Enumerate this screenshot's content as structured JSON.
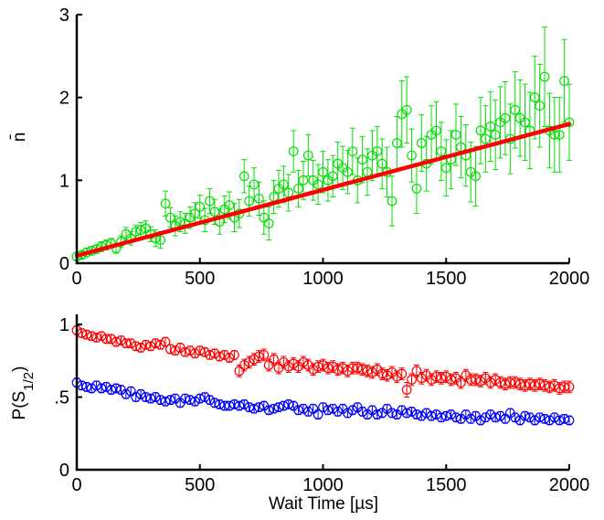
{
  "colors": {
    "nbar": "#00e000",
    "fit": "#ff0000",
    "red": "#ff0000",
    "blue": "#0000ff"
  },
  "chart_data": [
    {
      "type": "scatter",
      "ylabel": "n̄",
      "xlim": [
        0,
        2000
      ],
      "ylim": [
        0,
        3
      ],
      "xticks": [
        "0",
        "500",
        "1000",
        "1500",
        "2000"
      ],
      "yticks": [
        "0",
        "1",
        "2",
        "3"
      ],
      "series": [
        {
          "color": "#00e000",
          "marker": "circle",
          "x": [
            0,
            20,
            40,
            60,
            80,
            100,
            120,
            140,
            160,
            180,
            200,
            220,
            240,
            260,
            280,
            300,
            320,
            340,
            360,
            380,
            400,
            420,
            440,
            460,
            480,
            500,
            520,
            540,
            560,
            580,
            600,
            620,
            640,
            660,
            680,
            700,
            720,
            740,
            760,
            780,
            800,
            820,
            840,
            860,
            880,
            900,
            920,
            940,
            960,
            980,
            1000,
            1020,
            1040,
            1060,
            1080,
            1100,
            1120,
            1140,
            1160,
            1180,
            1200,
            1220,
            1240,
            1260,
            1280,
            1300,
            1320,
            1340,
            1360,
            1380,
            1400,
            1420,
            1440,
            1460,
            1480,
            1500,
            1520,
            1540,
            1560,
            1580,
            1600,
            1620,
            1640,
            1660,
            1680,
            1700,
            1720,
            1740,
            1760,
            1780,
            1800,
            1820,
            1840,
            1860,
            1880,
            1900,
            1920,
            1940,
            1960,
            1980,
            2000
          ],
          "y": [
            0.08,
            0.1,
            0.13,
            0.15,
            0.17,
            0.2,
            0.22,
            0.24,
            0.18,
            0.26,
            0.35,
            0.3,
            0.38,
            0.4,
            0.42,
            0.35,
            0.3,
            0.28,
            0.72,
            0.55,
            0.45,
            0.5,
            0.48,
            0.55,
            0.6,
            0.68,
            0.52,
            0.75,
            0.62,
            0.5,
            0.65,
            0.7,
            0.55,
            0.6,
            1.05,
            0.75,
            0.95,
            0.78,
            0.55,
            0.48,
            0.8,
            0.9,
            0.95,
            0.85,
            1.35,
            0.9,
            1.0,
            1.3,
            1.0,
            0.95,
            1.1,
            1.0,
            1.05,
            1.2,
            1.15,
            1.1,
            1.35,
            1.0,
            1.25,
            1.1,
            1.3,
            1.35,
            1.2,
            1.1,
            0.75,
            1.45,
            1.8,
            1.85,
            1.3,
            0.9,
            1.45,
            1.2,
            1.55,
            1.6,
            1.35,
            1.15,
            1.25,
            1.55,
            1.4,
            1.3,
            1.1,
            1.05,
            1.6,
            1.5,
            1.65,
            1.55,
            1.7,
            1.75,
            1.5,
            1.85,
            1.75,
            1.7,
            1.6,
            2.0,
            1.9,
            2.25,
            1.6,
            1.55,
            1.55,
            2.2,
            1.7
          ],
          "err": [
            0.04,
            0.04,
            0.05,
            0.05,
            0.05,
            0.06,
            0.06,
            0.06,
            0.06,
            0.07,
            0.08,
            0.08,
            0.08,
            0.09,
            0.09,
            0.09,
            0.1,
            0.1,
            0.15,
            0.12,
            0.12,
            0.12,
            0.12,
            0.13,
            0.13,
            0.14,
            0.14,
            0.15,
            0.15,
            0.15,
            0.16,
            0.16,
            0.17,
            0.17,
            0.2,
            0.18,
            0.2,
            0.2,
            0.2,
            0.2,
            0.2,
            0.22,
            0.22,
            0.22,
            0.25,
            0.22,
            0.23,
            0.25,
            0.24,
            0.24,
            0.25,
            0.25,
            0.25,
            0.26,
            0.26,
            0.26,
            0.28,
            0.27,
            0.28,
            0.28,
            0.3,
            0.3,
            0.3,
            0.3,
            0.3,
            0.32,
            0.4,
            0.4,
            0.32,
            0.3,
            0.34,
            0.33,
            0.35,
            0.35,
            0.35,
            0.34,
            0.35,
            0.37,
            0.37,
            0.37,
            0.36,
            0.36,
            0.4,
            0.4,
            0.42,
            0.42,
            0.43,
            0.44,
            0.42,
            0.46,
            0.46,
            0.46,
            0.46,
            0.5,
            0.5,
            0.6,
            0.45,
            0.45,
            0.45,
            0.5,
            0.46
          ]
        },
        {
          "type": "line",
          "color": "#ff0000",
          "x": [
            0,
            2000
          ],
          "y": [
            0.09,
            1.68
          ]
        }
      ]
    },
    {
      "type": "scatter",
      "xlabel": "Wait Time [µs]",
      "ylabel": "P(S",
      "ylabel_sub": "1/2",
      "ylabel_end": ")",
      "xlim": [
        0,
        2000
      ],
      "ylim": [
        0,
        1
      ],
      "xticks": [
        "0",
        "500",
        "1000",
        "1500",
        "2000"
      ],
      "yticks": [
        "0",
        ".5",
        "1"
      ],
      "series": [
        {
          "color": "#ff0000",
          "marker": "circle",
          "x": [
            0,
            20,
            40,
            60,
            80,
            100,
            120,
            140,
            160,
            180,
            200,
            220,
            240,
            260,
            280,
            300,
            320,
            340,
            360,
            380,
            400,
            420,
            440,
            460,
            480,
            500,
            520,
            540,
            560,
            580,
            600,
            620,
            640,
            660,
            680,
            700,
            720,
            740,
            760,
            780,
            800,
            820,
            840,
            860,
            880,
            900,
            920,
            940,
            960,
            980,
            1000,
            1020,
            1040,
            1060,
            1080,
            1100,
            1120,
            1140,
            1160,
            1180,
            1200,
            1220,
            1240,
            1260,
            1280,
            1300,
            1320,
            1340,
            1360,
            1380,
            1400,
            1420,
            1440,
            1460,
            1480,
            1500,
            1520,
            1540,
            1560,
            1580,
            1600,
            1620,
            1640,
            1660,
            1680,
            1700,
            1720,
            1740,
            1760,
            1780,
            1800,
            1820,
            1840,
            1860,
            1880,
            1900,
            1920,
            1940,
            1960,
            1980,
            2000
          ],
          "y": [
            0.96,
            0.94,
            0.93,
            0.92,
            0.91,
            0.92,
            0.9,
            0.9,
            0.88,
            0.89,
            0.87,
            0.87,
            0.85,
            0.84,
            0.86,
            0.85,
            0.87,
            0.86,
            0.88,
            0.83,
            0.82,
            0.84,
            0.81,
            0.82,
            0.8,
            0.82,
            0.81,
            0.79,
            0.8,
            0.78,
            0.79,
            0.77,
            0.79,
            0.68,
            0.72,
            0.74,
            0.76,
            0.78,
            0.79,
            0.72,
            0.76,
            0.7,
            0.74,
            0.71,
            0.73,
            0.71,
            0.74,
            0.72,
            0.69,
            0.71,
            0.72,
            0.7,
            0.71,
            0.69,
            0.7,
            0.68,
            0.7,
            0.7,
            0.69,
            0.68,
            0.67,
            0.69,
            0.66,
            0.65,
            0.67,
            0.64,
            0.66,
            0.55,
            0.62,
            0.68,
            0.63,
            0.65,
            0.62,
            0.64,
            0.63,
            0.64,
            0.62,
            0.63,
            0.6,
            0.65,
            0.62,
            0.62,
            0.61,
            0.63,
            0.6,
            0.62,
            0.6,
            0.59,
            0.6,
            0.6,
            0.59,
            0.58,
            0.59,
            0.58,
            0.59,
            0.58,
            0.57,
            0.58,
            0.56,
            0.57,
            0.57
          ],
          "err": [
            0.03,
            0.03,
            0.03,
            0.03,
            0.03,
            0.03,
            0.03,
            0.03,
            0.03,
            0.03,
            0.03,
            0.03,
            0.03,
            0.03,
            0.03,
            0.03,
            0.03,
            0.03,
            0.03,
            0.03,
            0.03,
            0.03,
            0.03,
            0.03,
            0.03,
            0.03,
            0.03,
            0.03,
            0.03,
            0.03,
            0.03,
            0.03,
            0.03,
            0.04,
            0.04,
            0.04,
            0.04,
            0.04,
            0.04,
            0.04,
            0.04,
            0.04,
            0.04,
            0.04,
            0.04,
            0.04,
            0.04,
            0.04,
            0.04,
            0.04,
            0.04,
            0.04,
            0.04,
            0.04,
            0.04,
            0.04,
            0.04,
            0.04,
            0.04,
            0.04,
            0.04,
            0.04,
            0.04,
            0.04,
            0.04,
            0.04,
            0.04,
            0.05,
            0.04,
            0.04,
            0.04,
            0.04,
            0.04,
            0.04,
            0.04,
            0.04,
            0.04,
            0.04,
            0.04,
            0.04,
            0.04,
            0.04,
            0.04,
            0.04,
            0.04,
            0.04,
            0.04,
            0.04,
            0.04,
            0.04,
            0.04,
            0.04,
            0.04,
            0.04,
            0.04,
            0.04,
            0.04,
            0.04,
            0.04,
            0.04,
            0.04
          ]
        },
        {
          "color": "#0000ff",
          "marker": "circle",
          "x": [
            0,
            20,
            40,
            60,
            80,
            100,
            120,
            140,
            160,
            180,
            200,
            220,
            240,
            260,
            280,
            300,
            320,
            340,
            360,
            380,
            400,
            420,
            440,
            460,
            480,
            500,
            520,
            540,
            560,
            580,
            600,
            620,
            640,
            660,
            680,
            700,
            720,
            740,
            760,
            780,
            800,
            820,
            840,
            860,
            880,
            900,
            920,
            940,
            960,
            980,
            1000,
            1020,
            1040,
            1060,
            1080,
            1100,
            1120,
            1140,
            1160,
            1180,
            1200,
            1220,
            1240,
            1260,
            1280,
            1300,
            1320,
            1340,
            1360,
            1380,
            1400,
            1420,
            1440,
            1460,
            1480,
            1500,
            1520,
            1540,
            1560,
            1580,
            1600,
            1620,
            1640,
            1660,
            1680,
            1700,
            1720,
            1740,
            1760,
            1780,
            1800,
            1820,
            1840,
            1860,
            1880,
            1900,
            1920,
            1940,
            1960,
            1980,
            2000
          ],
          "y": [
            0.6,
            0.58,
            0.57,
            0.56,
            0.58,
            0.56,
            0.57,
            0.55,
            0.56,
            0.55,
            0.52,
            0.54,
            0.5,
            0.52,
            0.5,
            0.49,
            0.5,
            0.48,
            0.47,
            0.48,
            0.49,
            0.46,
            0.49,
            0.48,
            0.47,
            0.49,
            0.5,
            0.48,
            0.46,
            0.45,
            0.44,
            0.44,
            0.45,
            0.44,
            0.45,
            0.43,
            0.42,
            0.43,
            0.44,
            0.41,
            0.42,
            0.43,
            0.44,
            0.45,
            0.44,
            0.41,
            0.42,
            0.4,
            0.42,
            0.38,
            0.43,
            0.41,
            0.42,
            0.4,
            0.42,
            0.39,
            0.41,
            0.43,
            0.4,
            0.38,
            0.41,
            0.38,
            0.39,
            0.42,
            0.39,
            0.38,
            0.41,
            0.39,
            0.4,
            0.38,
            0.37,
            0.39,
            0.37,
            0.38,
            0.36,
            0.37,
            0.38,
            0.36,
            0.35,
            0.38,
            0.35,
            0.37,
            0.34,
            0.36,
            0.38,
            0.36,
            0.37,
            0.35,
            0.39,
            0.36,
            0.34,
            0.37,
            0.36,
            0.34,
            0.36,
            0.35,
            0.34,
            0.36,
            0.34,
            0.35,
            0.34
          ],
          "err": [
            0.03,
            0.03,
            0.03,
            0.03,
            0.03,
            0.03,
            0.03,
            0.03,
            0.03,
            0.03,
            0.03,
            0.03,
            0.03,
            0.03,
            0.03,
            0.03,
            0.03,
            0.03,
            0.03,
            0.03,
            0.03,
            0.03,
            0.03,
            0.03,
            0.03,
            0.03,
            0.03,
            0.03,
            0.03,
            0.03,
            0.03,
            0.03,
            0.03,
            0.03,
            0.03,
            0.03,
            0.03,
            0.03,
            0.03,
            0.03,
            0.03,
            0.03,
            0.03,
            0.03,
            0.03,
            0.03,
            0.03,
            0.03,
            0.03,
            0.03,
            0.03,
            0.03,
            0.03,
            0.03,
            0.03,
            0.03,
            0.03,
            0.03,
            0.03,
            0.03,
            0.03,
            0.03,
            0.03,
            0.03,
            0.03,
            0.03,
            0.03,
            0.03,
            0.03,
            0.03,
            0.03,
            0.03,
            0.03,
            0.03,
            0.03,
            0.03,
            0.03,
            0.03,
            0.03,
            0.03,
            0.03,
            0.03,
            0.03,
            0.03,
            0.03,
            0.03,
            0.03,
            0.03,
            0.03,
            0.03,
            0.03,
            0.03,
            0.03,
            0.03,
            0.03,
            0.03,
            0.03,
            0.03,
            0.03,
            0.03,
            0.03
          ]
        }
      ]
    }
  ]
}
